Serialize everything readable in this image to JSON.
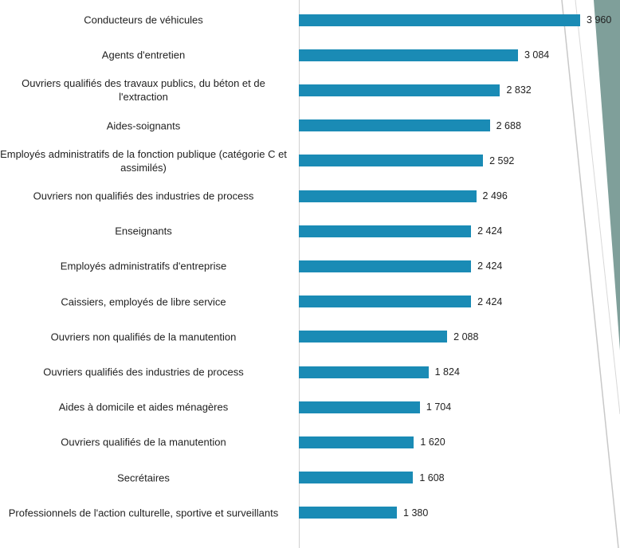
{
  "chart_data": {
    "type": "bar",
    "orientation": "horizontal",
    "categories": [
      "Conducteurs de véhicules",
      "Agents d'entretien",
      "Ouvriers qualifiés des travaux publics, du béton et de l'extraction",
      "Aides-soignants",
      "Employés administratifs de la fonction publique (catégorie C et assimilés)",
      "Ouvriers non qualifiés des industries de process",
      "Enseignants",
      "Employés administratifs d'entreprise",
      "Caissiers, employés de libre service",
      "Ouvriers non qualifiés de la manutention",
      "Ouvriers qualifiés des industries de process",
      "Aides à domicile et aides ménagères",
      "Ouvriers qualifiés de la manutention",
      "Secrétaires",
      "Professionnels de l'action culturelle, sportive et surveillants"
    ],
    "values": [
      3960,
      3084,
      2832,
      2688,
      2592,
      2496,
      2424,
      2424,
      2424,
      2088,
      1824,
      1704,
      1620,
      1608,
      1380
    ],
    "value_labels": [
      "3 960",
      "3 084",
      "2 832",
      "2 688",
      "2 592",
      "2 496",
      "2 424",
      "2 424",
      "2 424",
      "2 088",
      "1 824",
      "1 704",
      "1 620",
      "1 608",
      "1 380"
    ],
    "color": "#1a8bb5",
    "xlim": [
      0,
      4000
    ]
  }
}
